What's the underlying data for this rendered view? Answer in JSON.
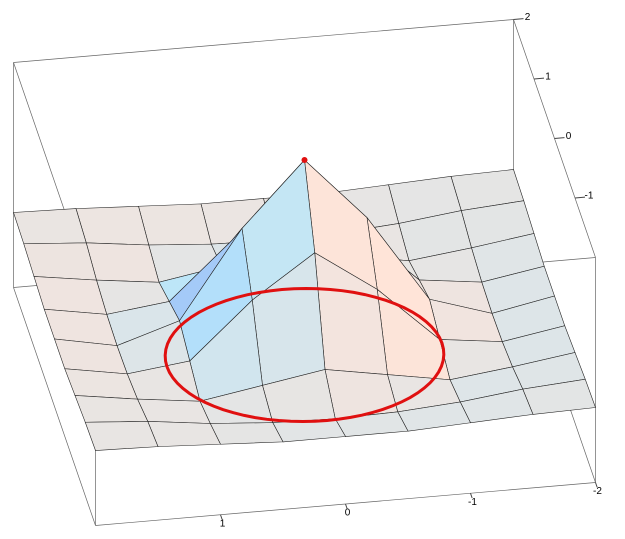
{
  "chart_data": {
    "type": "surface3d",
    "x": [
      -2,
      -1.5,
      -1,
      -0.5,
      0,
      0.5,
      1,
      1.5,
      2
    ],
    "y": [
      -2,
      -1.5,
      -1,
      -0.5,
      0,
      0.5,
      1,
      1.5,
      2
    ],
    "z": [
      [
        0,
        -0.01,
        -0.03,
        -0.05,
        -0.05,
        -0.05,
        -0.03,
        -0.01,
        0
      ],
      [
        -0.01,
        -0.04,
        -0.09,
        -0.12,
        -0.13,
        -0.12,
        -0.09,
        -0.04,
        -0.01
      ],
      [
        -0.03,
        -0.09,
        -0.14,
        -0.07,
        0,
        -0.07,
        -0.14,
        -0.09,
        -0.03
      ],
      [
        -0.05,
        -0.12,
        -0.07,
        0.3,
        0.58,
        0.3,
        -0.07,
        -0.12,
        -0.05
      ],
      [
        -0.05,
        -0.13,
        0,
        0.58,
        1,
        0.58,
        0,
        -0.13,
        -0.05
      ],
      [
        -0.05,
        -0.12,
        -0.07,
        0.3,
        0.58,
        0.3,
        -0.07,
        -0.12,
        -0.05
      ],
      [
        -0.03,
        -0.09,
        -0.14,
        -0.07,
        0,
        -0.07,
        -0.14,
        -0.09,
        -0.03
      ],
      [
        -0.01,
        -0.04,
        -0.09,
        -0.12,
        -0.13,
        -0.12,
        -0.09,
        -0.04,
        -0.01
      ],
      [
        0,
        -0.01,
        -0.03,
        -0.05,
        -0.05,
        -0.05,
        -0.03,
        -0.01,
        0
      ]
    ],
    "xlim": [
      -2,
      2
    ],
    "ylim": [
      -2,
      2
    ],
    "zlim": [
      -0.5,
      1
    ],
    "xticks": [
      -2,
      -1,
      0,
      1
    ],
    "yticks": [
      -1,
      0,
      1,
      2
    ],
    "circle": {
      "radius": 1.1,
      "z": -0.3,
      "color": "#e01010"
    },
    "peak": {
      "x": 0,
      "y": 0,
      "z": 1,
      "color": "#e01010"
    }
  }
}
